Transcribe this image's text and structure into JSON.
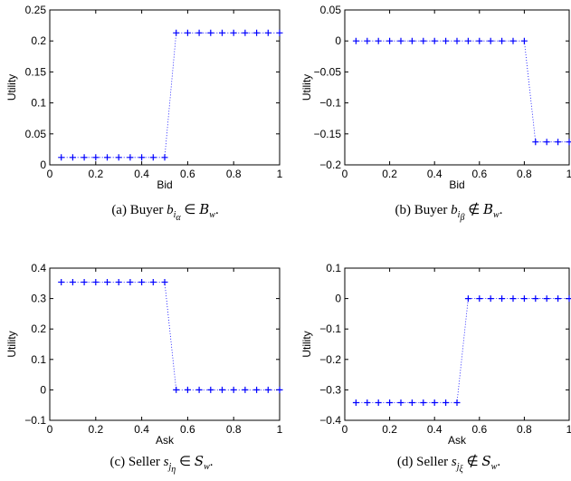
{
  "chart_data": [
    {
      "type": "scatter",
      "panel": "a",
      "xlabel": "Bid",
      "ylabel": "Utility",
      "xlim": [
        0,
        1
      ],
      "ylim": [
        0,
        0.25
      ],
      "xticks": [
        "0",
        "0.2",
        "0.4",
        "0.6",
        "0.8",
        "1"
      ],
      "yticks": [
        "0",
        "0.05",
        "0.1",
        "0.15",
        "0.2",
        "0.25"
      ],
      "series": [
        {
          "x": [
            0.05,
            0.1,
            0.15,
            0.2,
            0.25,
            0.3,
            0.35,
            0.4,
            0.45,
            0.5,
            0.55,
            0.6,
            0.65,
            0.7,
            0.75,
            0.8,
            0.85,
            0.9,
            0.95,
            1.0
          ],
          "y": [
            0.012,
            0.012,
            0.012,
            0.012,
            0.012,
            0.012,
            0.012,
            0.012,
            0.012,
            0.012,
            0.213,
            0.213,
            0.213,
            0.213,
            0.213,
            0.213,
            0.213,
            0.213,
            0.213,
            0.213
          ]
        }
      ],
      "caption": {
        "prefix": "(a)  Buyer ",
        "sym": "b",
        "sub": "i",
        "subsub": "α",
        "rel": " ∈ ",
        "set": "B",
        "setsub": "w",
        "suffix": "."
      }
    },
    {
      "type": "scatter",
      "panel": "b",
      "xlabel": "Bid",
      "ylabel": "Utility",
      "xlim": [
        0,
        1
      ],
      "ylim": [
        -0.2,
        0.05
      ],
      "xticks": [
        "0",
        "0.2",
        "0.4",
        "0.6",
        "0.8",
        "1"
      ],
      "yticks": [
        "−0.2",
        "−0.15",
        "−0.1",
        "−0.05",
        "0",
        "0.05"
      ],
      "series": [
        {
          "x": [
            0.05,
            0.1,
            0.15,
            0.2,
            0.25,
            0.3,
            0.35,
            0.4,
            0.45,
            0.5,
            0.55,
            0.6,
            0.65,
            0.7,
            0.75,
            0.8,
            0.85,
            0.9,
            0.95,
            1.0
          ],
          "y": [
            0,
            0,
            0,
            0,
            0,
            0,
            0,
            0,
            0,
            0,
            0,
            0,
            0,
            0,
            0,
            0,
            -0.163,
            -0.163,
            -0.163,
            -0.163
          ]
        }
      ],
      "caption": {
        "prefix": "(b)  Buyer ",
        "sym": "b",
        "sub": "i",
        "subsub": "β",
        "rel": " ∉ ",
        "set": "B",
        "setsub": "w",
        "suffix": "."
      }
    },
    {
      "type": "scatter",
      "panel": "c",
      "xlabel": "Ask",
      "ylabel": "Utility",
      "xlim": [
        0,
        1
      ],
      "ylim": [
        -0.1,
        0.4
      ],
      "xticks": [
        "0",
        "0.2",
        "0.4",
        "0.6",
        "0.8",
        "1"
      ],
      "yticks": [
        "−0.1",
        "0",
        "0.1",
        "0.2",
        "0.3",
        "0.4"
      ],
      "series": [
        {
          "x": [
            0.05,
            0.1,
            0.15,
            0.2,
            0.25,
            0.3,
            0.35,
            0.4,
            0.45,
            0.5,
            0.55,
            0.6,
            0.65,
            0.7,
            0.75,
            0.8,
            0.85,
            0.9,
            0.95,
            1.0
          ],
          "y": [
            0.354,
            0.354,
            0.354,
            0.354,
            0.354,
            0.354,
            0.354,
            0.354,
            0.354,
            0.354,
            0,
            0,
            0,
            0,
            0,
            0,
            0,
            0,
            0,
            0
          ]
        }
      ],
      "caption": {
        "prefix": "(c)  Seller ",
        "sym": "s",
        "sub": "j",
        "subsub": "η",
        "rel": " ∈ ",
        "set": "S",
        "setsub": "w",
        "suffix": "."
      }
    },
    {
      "type": "scatter",
      "panel": "d",
      "xlabel": "Ask",
      "ylabel": "Utility",
      "xlim": [
        0,
        1
      ],
      "ylim": [
        -0.4,
        0.1
      ],
      "xticks": [
        "0",
        "0.2",
        "0.4",
        "0.6",
        "0.8",
        "1"
      ],
      "yticks": [
        "−0.4",
        "−0.3",
        "−0.2",
        "−0.1",
        "0",
        "0.1"
      ],
      "series": [
        {
          "x": [
            0.05,
            0.1,
            0.15,
            0.2,
            0.25,
            0.3,
            0.35,
            0.4,
            0.45,
            0.5,
            0.55,
            0.6,
            0.65,
            0.7,
            0.75,
            0.8,
            0.85,
            0.9,
            0.95,
            1.0
          ],
          "y": [
            -0.342,
            -0.342,
            -0.342,
            -0.342,
            -0.342,
            -0.342,
            -0.342,
            -0.342,
            -0.342,
            -0.342,
            0,
            0,
            0,
            0,
            0,
            0,
            0,
            0,
            0,
            0
          ]
        }
      ],
      "caption": {
        "prefix": "(d)  Seller ",
        "sym": "s",
        "sub": "j",
        "subsub": "ξ",
        "rel": " ∉ ",
        "set": "S",
        "setsub": "w",
        "suffix": "."
      }
    }
  ],
  "style": {
    "marker_color": "#0000ff",
    "axis_color": "#000000"
  }
}
